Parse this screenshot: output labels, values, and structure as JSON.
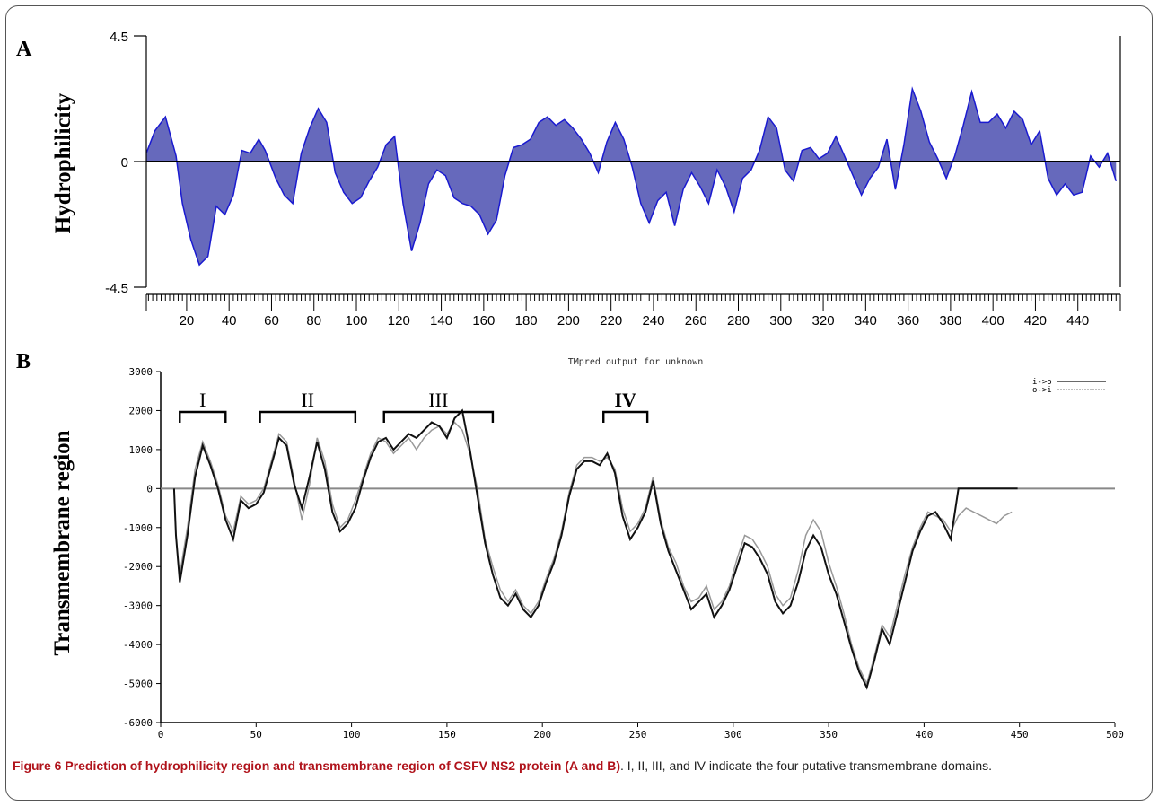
{
  "chart_data": [
    {
      "panel_label": "A",
      "type": "area",
      "ylabel": "Hydrophilicity",
      "ylim": [
        -4.5,
        4.5
      ],
      "xlim": [
        1,
        460
      ],
      "y_ticks": [
        "4.5",
        "0",
        "-4.5"
      ],
      "x_ticks": [
        20,
        40,
        60,
        80,
        100,
        120,
        140,
        160,
        180,
        200,
        220,
        240,
        260,
        280,
        300,
        320,
        340,
        360,
        380,
        400,
        420,
        440
      ],
      "fill_color": "#4b4fb0",
      "line_color": "#1a1ad0",
      "series": [
        {
          "x": [
            1,
            5,
            10,
            15,
            18,
            22,
            26,
            30,
            34,
            38,
            42,
            46,
            50,
            54,
            57,
            62,
            66,
            70,
            74,
            78,
            82,
            86,
            90,
            94,
            98,
            102,
            106,
            110,
            114,
            118,
            122,
            126,
            130,
            134,
            138,
            142,
            146,
            150,
            154,
            158,
            162,
            166,
            170,
            174,
            178,
            182,
            186,
            190,
            194,
            198,
            202,
            206,
            210,
            214,
            218,
            222,
            226,
            230,
            234,
            238,
            242,
            246,
            250,
            254,
            258,
            262,
            266,
            270,
            274,
            278,
            282,
            286,
            290,
            294,
            298,
            302,
            306,
            310,
            314,
            318,
            322,
            326,
            330,
            334,
            338,
            342,
            346,
            350,
            354,
            358,
            362,
            366,
            370,
            374,
            378,
            382,
            386,
            390,
            394,
            398,
            402,
            406,
            410,
            414,
            418,
            422,
            426,
            430,
            434,
            438,
            442,
            446,
            450,
            454,
            458
          ],
          "y": [
            0.3,
            1.1,
            1.6,
            0.2,
            -1.5,
            -2.8,
            -3.7,
            -3.4,
            -1.6,
            -1.9,
            -1.2,
            0.4,
            0.3,
            0.8,
            0.4,
            -0.6,
            -1.2,
            -1.5,
            0.3,
            1.2,
            1.9,
            1.4,
            -0.4,
            -1.1,
            -1.5,
            -1.3,
            -0.7,
            -0.2,
            0.6,
            0.9,
            -1.5,
            -3.2,
            -2.2,
            -0.8,
            -0.3,
            -0.5,
            -1.3,
            -1.5,
            -1.6,
            -1.9,
            -2.6,
            -2.1,
            -0.5,
            0.5,
            0.6,
            0.8,
            1.4,
            1.6,
            1.3,
            1.5,
            1.2,
            0.8,
            0.3,
            -0.4,
            0.7,
            1.4,
            0.8,
            -0.2,
            -1.5,
            -2.2,
            -1.4,
            -1.1,
            -2.3,
            -1.0,
            -0.4,
            -0.9,
            -1.5,
            -0.3,
            -0.9,
            -1.8,
            -0.6,
            -0.3,
            0.4,
            1.6,
            1.2,
            -0.3,
            -0.7,
            0.4,
            0.5,
            0.1,
            0.3,
            0.9,
            0.2,
            -0.5,
            -1.2,
            -0.6,
            -0.2,
            0.8,
            -1.0,
            0.6,
            2.6,
            1.8,
            0.7,
            0.1,
            -0.6,
            0.2,
            1.3,
            2.5,
            1.4,
            1.4,
            1.7,
            1.2,
            1.8,
            1.5,
            0.6,
            1.1,
            -0.6,
            -1.2,
            -0.8,
            -1.2,
            -1.1,
            0.2,
            -0.2,
            0.3,
            -0.7
          ]
        }
      ]
    },
    {
      "panel_label": "B",
      "type": "line",
      "title": "TMpred output for unknown",
      "ylabel": "Transmembrane region",
      "xlim": [
        0,
        500
      ],
      "ylim": [
        -6000,
        3000
      ],
      "x_ticks": [
        0,
        50,
        100,
        150,
        200,
        250,
        300,
        350,
        400,
        450,
        500
      ],
      "y_ticks": [
        3000,
        2000,
        1000,
        0,
        -1000,
        -2000,
        -3000,
        -4000,
        -5000,
        -6000
      ],
      "legend": {
        "placement": "top-right",
        "entries": [
          "i->o",
          "o->i"
        ]
      },
      "region_brackets": [
        {
          "label": "I",
          "x_start": 10,
          "x_end": 34
        },
        {
          "label": "II",
          "x_start": 52,
          "x_end": 102
        },
        {
          "label": "III",
          "x_start": 117,
          "x_end": 174
        },
        {
          "label": "IV",
          "x_start": 232,
          "x_end": 255
        }
      ],
      "series": [
        {
          "name": "i->o",
          "color": "#111111",
          "x": [
            7,
            8,
            10,
            14,
            18,
            22,
            26,
            30,
            34,
            38,
            42,
            46,
            50,
            54,
            58,
            62,
            66,
            70,
            74,
            78,
            82,
            86,
            90,
            94,
            98,
            102,
            106,
            110,
            114,
            118,
            122,
            126,
            130,
            134,
            138,
            142,
            146,
            150,
            154,
            158,
            162,
            166,
            170,
            174,
            178,
            182,
            186,
            190,
            194,
            198,
            202,
            206,
            210,
            214,
            218,
            222,
            226,
            230,
            234,
            238,
            242,
            246,
            250,
            254,
            258,
            262,
            266,
            270,
            274,
            278,
            282,
            286,
            290,
            294,
            298,
            302,
            306,
            310,
            314,
            318,
            322,
            326,
            330,
            334,
            338,
            342,
            346,
            350,
            354,
            358,
            362,
            366,
            370,
            374,
            378,
            382,
            386,
            390,
            394,
            398,
            402,
            406,
            410,
            414,
            418,
            422,
            426,
            430,
            434,
            438,
            442,
            446,
            448,
            449
          ],
          "y": [
            0,
            -1200,
            -2400,
            -1200,
            300,
            1100,
            600,
            0,
            -800,
            -1300,
            -300,
            -500,
            -400,
            -100,
            600,
            1300,
            1100,
            100,
            -500,
            300,
            1200,
            500,
            -600,
            -1100,
            -900,
            -500,
            200,
            800,
            1200,
            1300,
            1000,
            1200,
            1400,
            1300,
            1500,
            1700,
            1600,
            1300,
            1800,
            2000,
            1000,
            -200,
            -1400,
            -2200,
            -2800,
            -3000,
            -2700,
            -3100,
            -3300,
            -3000,
            -2400,
            -1900,
            -1200,
            -200,
            500,
            700,
            700,
            600,
            900,
            400,
            -700,
            -1300,
            -1000,
            -600,
            200,
            -900,
            -1600,
            -2100,
            -2600,
            -3100,
            -2900,
            -2700,
            -3300,
            -3000,
            -2600,
            -2000,
            -1400,
            -1500,
            -1800,
            -2200,
            -2900,
            -3200,
            -3000,
            -2400,
            -1600,
            -1200,
            -1500,
            -2200,
            -2700,
            -3400,
            -4100,
            -4700,
            -5100,
            -4400,
            -3600,
            -4000,
            -3200,
            -2400,
            -1600,
            -1100,
            -700,
            -600,
            -900,
            -1300,
            0,
            0,
            0,
            0,
            0,
            0,
            0,
            0,
            0,
            0
          ],
          "note_skip": []
        },
        {
          "name": "o->i",
          "color": "#999999",
          "x": [
            10,
            14,
            18,
            22,
            26,
            30,
            34,
            38,
            42,
            46,
            50,
            54,
            58,
            62,
            66,
            70,
            74,
            78,
            82,
            86,
            90,
            94,
            98,
            102,
            106,
            110,
            114,
            118,
            122,
            126,
            130,
            134,
            138,
            142,
            146,
            150,
            154,
            158,
            162,
            166,
            170,
            174,
            178,
            182,
            186,
            190,
            194,
            198,
            202,
            206,
            210,
            214,
            218,
            222,
            226,
            230,
            234,
            238,
            242,
            246,
            250,
            254,
            258,
            262,
            266,
            270,
            274,
            278,
            282,
            286,
            290,
            294,
            298,
            302,
            306,
            310,
            314,
            318,
            322,
            326,
            330,
            334,
            338,
            342,
            346,
            350,
            354,
            358,
            362,
            366,
            370,
            374,
            378,
            382,
            386,
            390,
            394,
            398,
            402,
            406,
            410,
            414,
            418,
            422,
            426,
            430,
            434,
            438,
            442,
            446
          ],
          "y": [
            -2200,
            -1000,
            500,
            1200,
            700,
            100,
            -700,
            -1100,
            -200,
            -400,
            -300,
            0,
            700,
            1400,
            1200,
            200,
            -800,
            100,
            1300,
            700,
            -400,
            -1000,
            -800,
            -300,
            300,
            900,
            1300,
            1200,
            900,
            1100,
            1300,
            1000,
            1300,
            1500,
            1600,
            1400,
            1700,
            1500,
            900,
            0,
            -1300,
            -2000,
            -2600,
            -2900,
            -2600,
            -3000,
            -3200,
            -2900,
            -2300,
            -1800,
            -1100,
            -100,
            600,
            800,
            800,
            700,
            800,
            500,
            -500,
            -1100,
            -900,
            -500,
            300,
            -800,
            -1500,
            -1900,
            -2500,
            -2900,
            -2800,
            -2500,
            -3100,
            -2900,
            -2500,
            -1800,
            -1200,
            -1300,
            -1600,
            -2000,
            -2700,
            -3000,
            -2800,
            -2100,
            -1200,
            -800,
            -1100,
            -1900,
            -2500,
            -3200,
            -4000,
            -4600,
            -5000,
            -4300,
            -3500,
            -3800,
            -3000,
            -2200,
            -1500,
            -1000,
            -600,
            -700,
            -800,
            -1100,
            -700,
            -500,
            -600,
            -700,
            -800,
            -900,
            -700,
            -600
          ]
        }
      ]
    }
  ],
  "caption": {
    "label": "Figure 6 Prediction of hydrophilicity region and transmembrane region of CSFV NS2 protein (A and B)",
    "text": ". I, II, III, and IV indicate the four putative transmembrane domains."
  }
}
